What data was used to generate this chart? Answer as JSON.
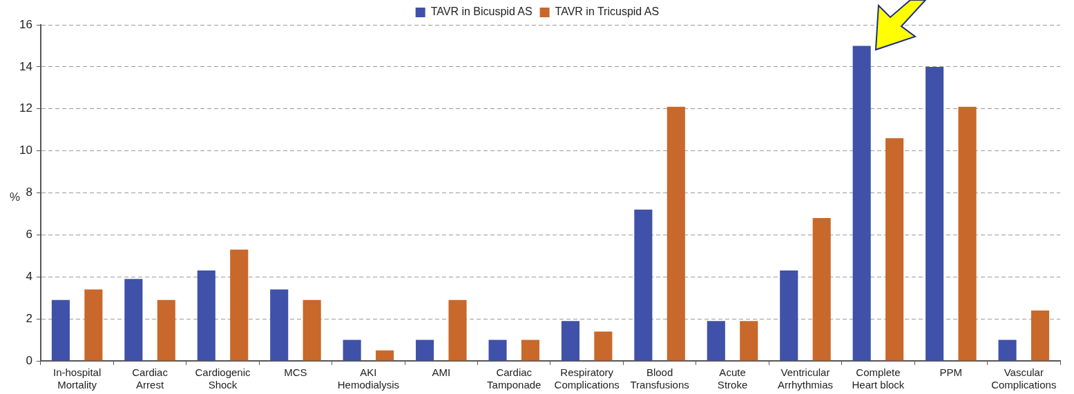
{
  "chart_data": {
    "type": "bar",
    "ylabel": "%",
    "categories": [
      "In-hospital\nMortality",
      "Cardiac\nArrest",
      "Cardiogenic\nShock",
      "MCS",
      "AKI\nHemodialysis",
      "AMI",
      "Cardiac\nTamponade",
      "Respiratory\nComplications",
      "Blood\nTransfusions",
      "Acute\nStroke",
      "Ventricular\nArrhythmias",
      "Complete\nHeart block",
      "PPM",
      "Vascular\nComplications"
    ],
    "series": [
      {
        "name": "TAVR in Bicuspid AS",
        "color": "#3f51a8",
        "values": [
          2.9,
          3.9,
          4.3,
          3.4,
          1.0,
          1.0,
          1.0,
          1.9,
          7.2,
          1.9,
          4.3,
          15.0,
          14.0,
          1.0
        ]
      },
      {
        "name": "TAVR in Tricuspid AS",
        "color": "#c8682a",
        "values": [
          3.4,
          2.9,
          5.3,
          2.9,
          0.5,
          2.9,
          1.0,
          1.4,
          12.1,
          1.9,
          6.8,
          10.6,
          12.1,
          2.4
        ]
      }
    ],
    "ylim": [
      0,
      16
    ],
    "yticks": [
      0,
      2,
      4,
      6,
      8,
      10,
      12,
      14,
      16
    ],
    "grid": "y",
    "legend": "top"
  }
}
